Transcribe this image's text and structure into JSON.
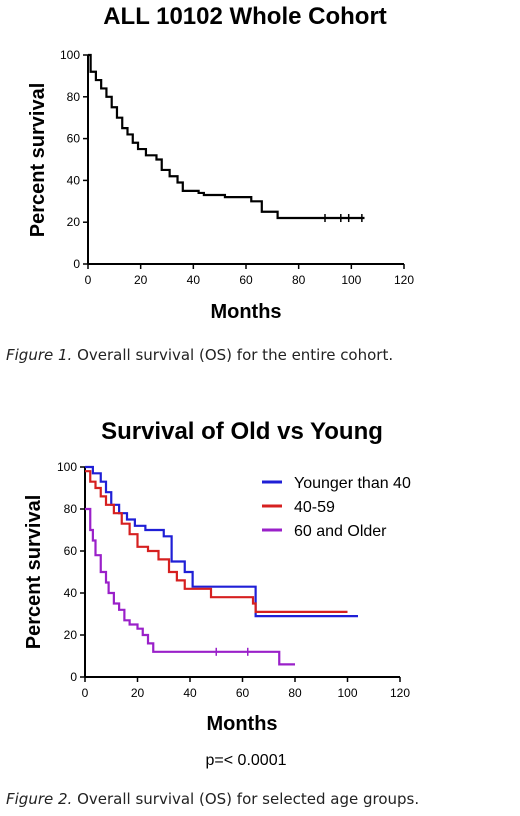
{
  "captions": [
    {
      "label": "Figure 1.",
      "text": " Overall survival (OS) for the entire cohort."
    },
    {
      "label": "Figure 2.",
      "text": " Overall survival (OS) for selected age groups."
    }
  ],
  "chart_data": [
    {
      "type": "line",
      "title": "ALL 10102 Whole Cohort",
      "xlabel": "Months",
      "ylabel": "Percent survival",
      "xlim": [
        0,
        120
      ],
      "ylim": [
        0,
        100
      ],
      "xticks": [
        0,
        20,
        40,
        60,
        80,
        100,
        120
      ],
      "yticks": [
        0,
        20,
        40,
        60,
        80,
        100
      ],
      "grid": false,
      "series": [
        {
          "color": "#000000",
          "points": [
            [
              0,
              100
            ],
            [
              1,
              92
            ],
            [
              3,
              88
            ],
            [
              5,
              84
            ],
            [
              7,
              80
            ],
            [
              9,
              75
            ],
            [
              11,
              70
            ],
            [
              13,
              65
            ],
            [
              15,
              62
            ],
            [
              17,
              58
            ],
            [
              19,
              55
            ],
            [
              22,
              52
            ],
            [
              26,
              50
            ],
            [
              28,
              45
            ],
            [
              31,
              42
            ],
            [
              34,
              39
            ],
            [
              36,
              35
            ],
            [
              42,
              34
            ],
            [
              44,
              33
            ],
            [
              52,
              32
            ],
            [
              62,
              30
            ],
            [
              66,
              25
            ],
            [
              72,
              22
            ],
            [
              105,
              22
            ]
          ],
          "censored": [
            90,
            96,
            99,
            104
          ]
        }
      ]
    },
    {
      "type": "line",
      "title": "Survival of Old vs Young",
      "xlabel": "Months",
      "ylabel": "Percent survival",
      "xlim": [
        0,
        120
      ],
      "ylim": [
        0,
        100
      ],
      "xticks": [
        0,
        20,
        40,
        60,
        80,
        100,
        120
      ],
      "yticks": [
        0,
        20,
        40,
        60,
        80,
        100
      ],
      "grid": false,
      "legend_position": "top-right",
      "annotation": "p=< 0.0001",
      "series": [
        {
          "name": "Younger than 40",
          "color": "#1f1fd6",
          "points": [
            [
              0,
              100
            ],
            [
              3,
              97
            ],
            [
              6,
              93
            ],
            [
              8,
              88
            ],
            [
              10,
              82
            ],
            [
              13,
              78
            ],
            [
              16,
              75
            ],
            [
              19,
              72
            ],
            [
              23,
              70
            ],
            [
              30,
              67
            ],
            [
              33,
              55
            ],
            [
              38,
              50
            ],
            [
              41,
              43
            ],
            [
              64,
              43
            ],
            [
              65,
              29
            ],
            [
              104,
              29
            ]
          ]
        },
        {
          "name": "40-59",
          "color": "#d62020",
          "points": [
            [
              0,
              98
            ],
            [
              2,
              93
            ],
            [
              4,
              90
            ],
            [
              6,
              86
            ],
            [
              8,
              82
            ],
            [
              11,
              78
            ],
            [
              14,
              73
            ],
            [
              17,
              68
            ],
            [
              20,
              62
            ],
            [
              24,
              60
            ],
            [
              28,
              56
            ],
            [
              32,
              50
            ],
            [
              35,
              46
            ],
            [
              38,
              42
            ],
            [
              46,
              42
            ],
            [
              48,
              38
            ],
            [
              62,
              38
            ],
            [
              64,
              35
            ],
            [
              65,
              31
            ],
            [
              100,
              31
            ]
          ]
        },
        {
          "name": "60 and Older",
          "color": "#9a20c9",
          "points": [
            [
              0,
              80
            ],
            [
              2,
              70
            ],
            [
              3,
              65
            ],
            [
              4,
              58
            ],
            [
              6,
              50
            ],
            [
              8,
              45
            ],
            [
              9,
              40
            ],
            [
              11,
              35
            ],
            [
              13,
              32
            ],
            [
              15,
              27
            ],
            [
              17,
              25
            ],
            [
              20,
              23
            ],
            [
              22,
              20
            ],
            [
              24,
              16
            ],
            [
              26,
              12
            ],
            [
              74,
              12
            ],
            [
              74,
              6
            ],
            [
              80,
              6
            ]
          ],
          "censored": [
            50,
            62
          ]
        }
      ]
    }
  ]
}
